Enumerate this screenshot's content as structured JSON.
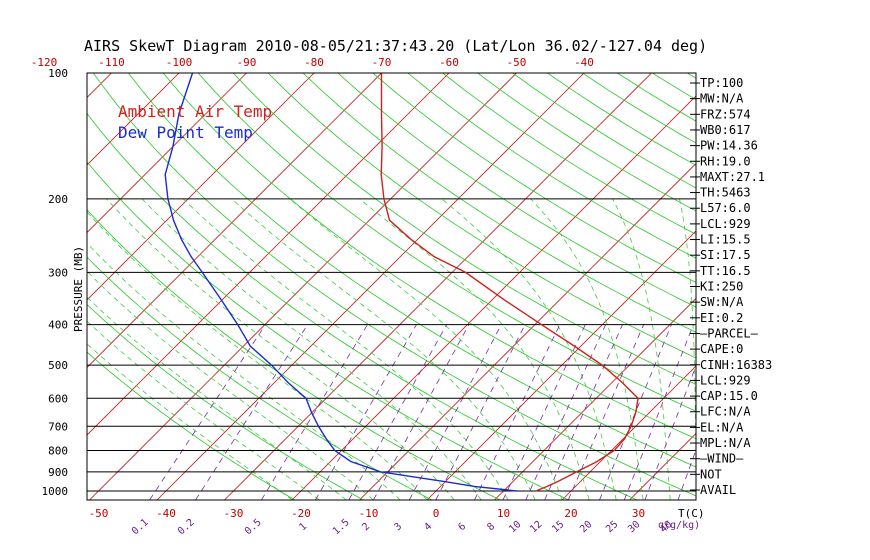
{
  "chart_data": {
    "type": "line",
    "title": "AIRS SkewT Diagram 2010-08-05/21:37:43.20 (Lat/Lon 36.02/-127.04 deg)",
    "ylabel": "PRESSURE (MB)",
    "xlabel": "T(C)",
    "mixing_ratio_unit": "q(g/kg)",
    "y_scale": "log",
    "ylim": [
      1050,
      100
    ],
    "xlim_bottom": [
      -52,
      48
    ],
    "pressure_ticks": [
      100,
      200,
      300,
      400,
      500,
      600,
      700,
      800,
      900,
      1000
    ],
    "top_ticks": [
      -120,
      -110,
      -100,
      -90,
      -80,
      -70,
      -60,
      -50,
      -40
    ],
    "bottom_ticks": [
      -50,
      -40,
      -30,
      -20,
      -10,
      0,
      10,
      20,
      30
    ],
    "mixing_ratio_ticks": [
      "0.1",
      "0.2",
      "0.5",
      "1",
      "1.5",
      "2",
      "3",
      "4",
      "6",
      "8",
      "10",
      "12",
      "15",
      "20",
      "25",
      "30",
      "40"
    ],
    "legend": [
      {
        "label": "Ambient Air Temp",
        "color": "#d02020"
      },
      {
        "label": "Dew Point Temp",
        "color": "#1a2bd0"
      }
    ],
    "series": [
      {
        "name": "Ambient Air Temp",
        "color": "#d02020",
        "points": [
          [
            1000,
            14.8
          ],
          [
            975,
            15.8
          ],
          [
            950,
            16.6
          ],
          [
            900,
            18
          ],
          [
            850,
            19.5
          ],
          [
            800,
            20.4
          ],
          [
            750,
            20.2
          ],
          [
            700,
            19.3
          ],
          [
            650,
            18
          ],
          [
            600,
            16.2
          ],
          [
            550,
            11.5
          ],
          [
            500,
            6
          ],
          [
            450,
            -1
          ],
          [
            400,
            -9
          ],
          [
            350,
            -18
          ],
          [
            300,
            -28
          ],
          [
            275,
            -35
          ],
          [
            250,
            -41
          ],
          [
            225,
            -47
          ],
          [
            200,
            -51
          ],
          [
            175,
            -55
          ],
          [
            150,
            -59
          ],
          [
            125,
            -64
          ],
          [
            100,
            -70
          ]
        ]
      },
      {
        "name": "Dew Point Temp",
        "color": "#1a2bd0",
        "points": [
          [
            1000,
            12
          ],
          [
            975,
            5
          ],
          [
            950,
            0
          ],
          [
            900,
            -11
          ],
          [
            850,
            -17
          ],
          [
            800,
            -21
          ],
          [
            750,
            -24
          ],
          [
            700,
            -27
          ],
          [
            650,
            -30
          ],
          [
            600,
            -33
          ],
          [
            550,
            -38
          ],
          [
            500,
            -43
          ],
          [
            450,
            -49
          ],
          [
            400,
            -54
          ],
          [
            350,
            -60
          ],
          [
            300,
            -67
          ],
          [
            275,
            -71
          ],
          [
            250,
            -75
          ],
          [
            225,
            -79
          ],
          [
            200,
            -83
          ],
          [
            175,
            -87
          ],
          [
            150,
            -90
          ],
          [
            125,
            -94
          ],
          [
            100,
            -98
          ]
        ]
      }
    ]
  },
  "indices": [
    "TP:100",
    "MW:N/A",
    "FRZ:574",
    "WB0:617",
    "PW:14.36",
    "RH:19.0",
    "MAXT:27.1",
    "TH:5463",
    "L57:6.0",
    "LCL:929",
    "LI:15.5",
    "SI:17.5",
    "TT:16.5",
    "KI:250",
    "SW:N/A",
    "EI:0.2",
    "—PARCEL—",
    "CAPE:0",
    "CINH:16383",
    "LCL:929",
    "CAP:15.0",
    "LFC:N/A",
    "EL:N/A",
    "MPL:N/A",
    "—WIND—",
    "NOT",
    "AVAIL"
  ]
}
